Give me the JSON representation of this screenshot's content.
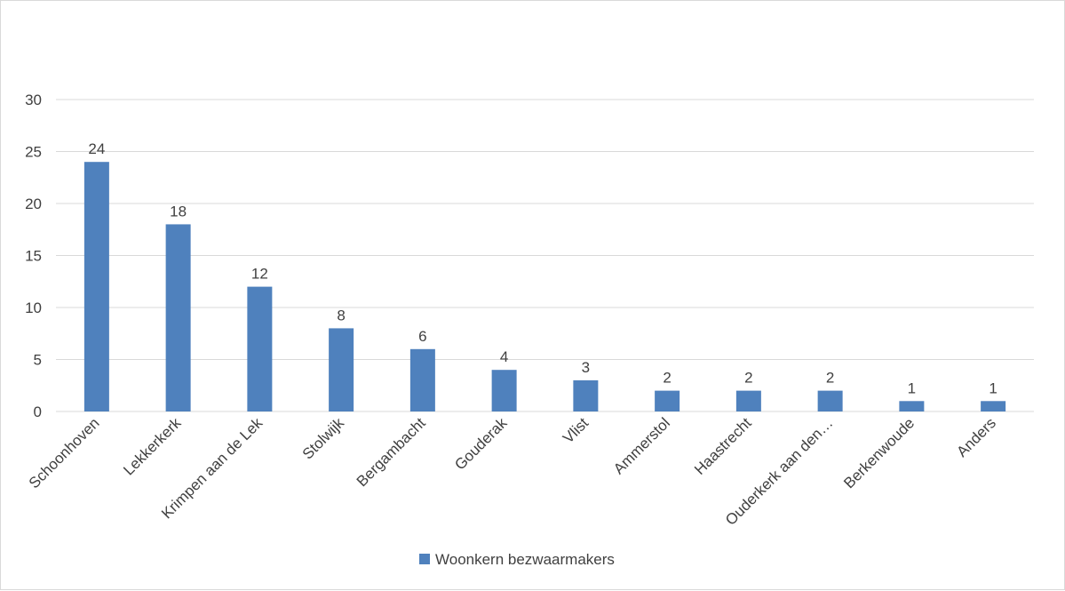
{
  "chart_data": {
    "type": "bar",
    "title": "",
    "xlabel": "",
    "ylabel": "",
    "ylim": [
      0,
      30
    ],
    "yticks": [
      0,
      5,
      10,
      15,
      20,
      25,
      30
    ],
    "grid": true,
    "legend_position": "bottom",
    "categories": [
      "Schoonhoven",
      "Lekkerkerk",
      "Krimpen aan de Lek",
      "Stolwijk",
      "Bergambacht",
      "Gouderak",
      "Vlist",
      "Ammerstol",
      "Haastrecht",
      "Ouderkerk aan den…",
      "Berkenwoude",
      "Anders"
    ],
    "series": [
      {
        "name": "Woonkern bezwaarmakers",
        "values": [
          24,
          18,
          12,
          8,
          6,
          4,
          3,
          2,
          2,
          2,
          1,
          1
        ],
        "color": "#4f81bd"
      }
    ]
  }
}
